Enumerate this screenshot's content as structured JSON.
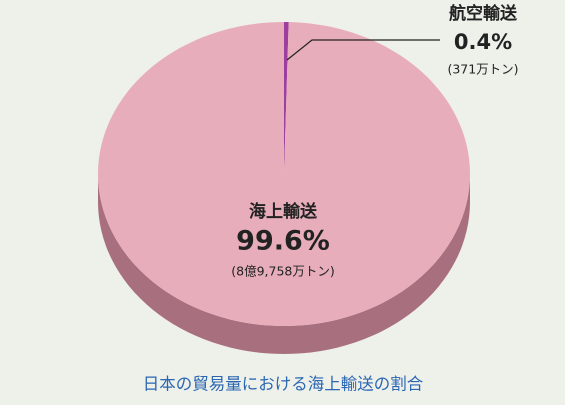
{
  "chart_data": {
    "type": "pie",
    "title": "日本の貿易量における海上輸送の割合",
    "categories": [
      "航空輸送",
      "海上輸送"
    ],
    "values": [
      0.4,
      99.6
    ],
    "value_labels": [
      "0.4%",
      "99.6%"
    ],
    "amount_labels": [
      "(371万トン)",
      "(8億9,758万トン)"
    ],
    "colors": [
      "#9c3f9e",
      "#e8adbb"
    ]
  }
}
